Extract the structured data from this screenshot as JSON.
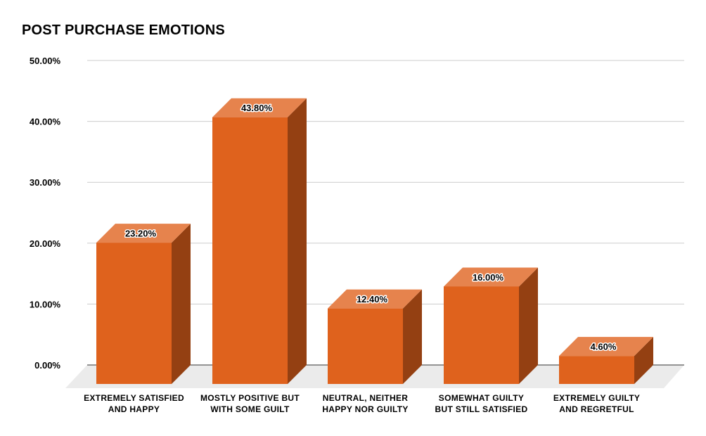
{
  "chart_data": {
    "type": "bar",
    "title": "POST PURCHASE EMOTIONS",
    "categories": [
      [
        "EXTREMELY SATISFIED",
        "AND HAPPY"
      ],
      [
        "MOSTLY POSITIVE BUT",
        "WITH SOME GUILT"
      ],
      [
        "NEUTRAL, NEITHER",
        "HAPPY NOR GUILTY"
      ],
      [
        "SOMEWHAT GUILTY",
        "BUT STILL SATISFIED"
      ],
      [
        "EXTREMELY GUILTY",
        "AND REGRETFUL"
      ]
    ],
    "values": [
      23.2,
      43.8,
      12.4,
      16.0,
      4.6
    ],
    "data_labels": [
      "23.20%",
      "43.80%",
      "12.40%",
      "16.00%",
      "4.60%"
    ],
    "yticks": [
      "0.00%",
      "10.00%",
      "20.00%",
      "30.00%",
      "40.00%",
      "50.00%"
    ],
    "ylim": [
      0,
      50
    ],
    "xlabel": "",
    "ylabel": "",
    "grid": true,
    "legend": "none",
    "style": "3d-column",
    "colors": {
      "front": "#DF621D",
      "top": "#E6834D",
      "side": "#944012",
      "floor": "#EBEBEB",
      "grid": "#CCCCCC",
      "baseline": "#333333"
    }
  }
}
